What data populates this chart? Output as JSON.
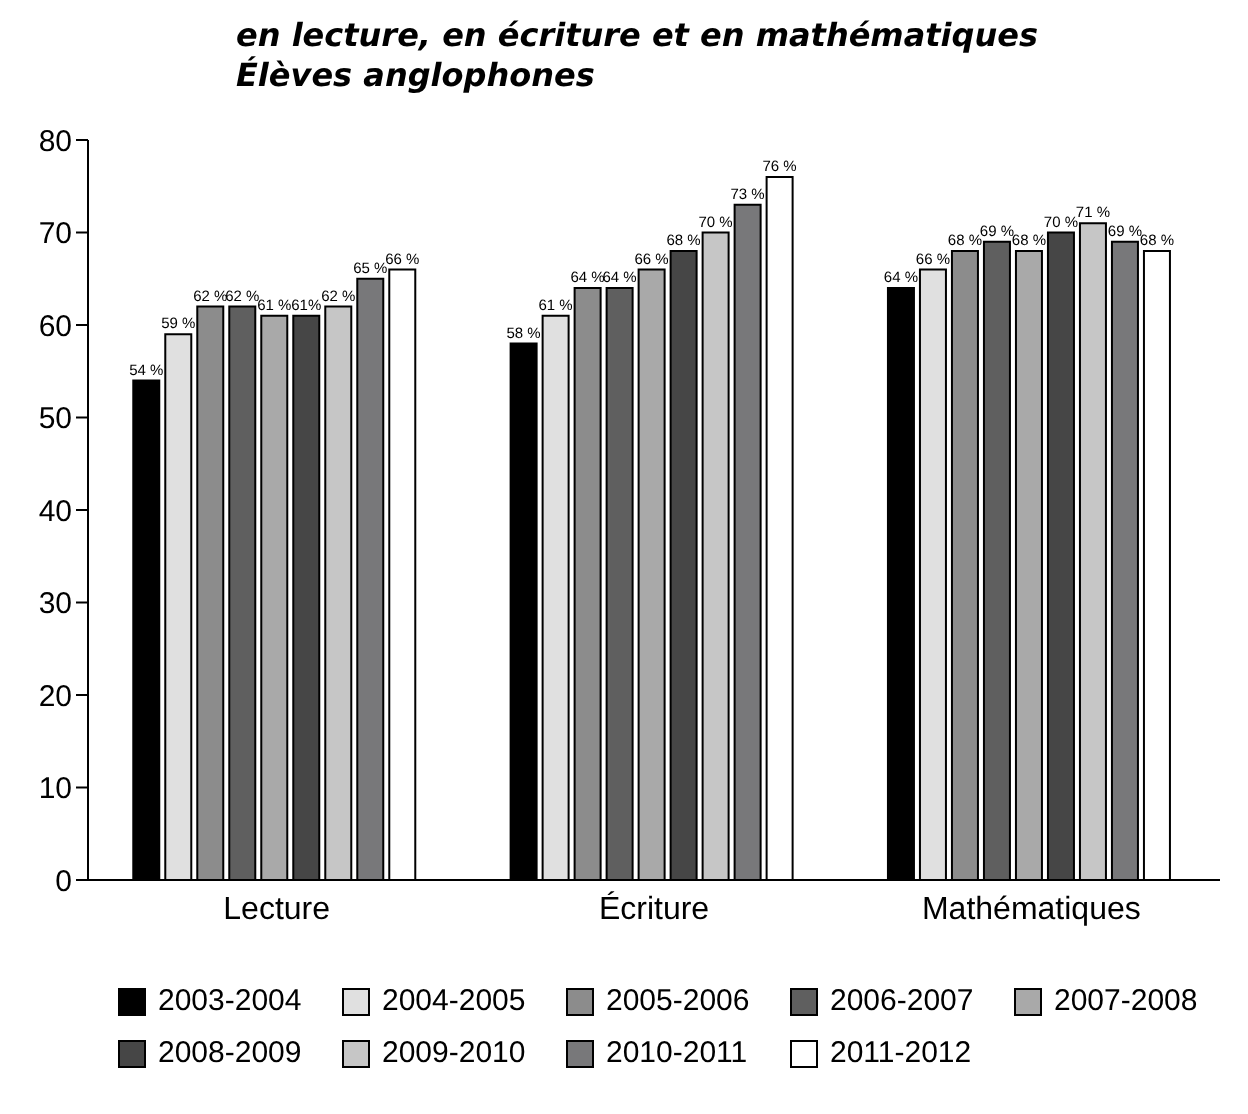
{
  "chart_data": {
    "type": "bar",
    "title": "en lecture, en écriture et en mathématiques",
    "subtitle": "Élèves anglophones",
    "categories": [
      "Lecture",
      "Écriture",
      "Mathématiques"
    ],
    "series": [
      {
        "name": "2003-2004",
        "color": "#000000",
        "values": [
          54,
          58,
          64
        ],
        "value_labels": [
          "54 %",
          "58 %",
          "64 %"
        ]
      },
      {
        "name": "2004-2005",
        "color": "#e0e0e0",
        "values": [
          59,
          61,
          66
        ],
        "value_labels": [
          "59 %",
          "61 %",
          "66 %"
        ]
      },
      {
        "name": "2005-2006",
        "color": "#8c8c8c",
        "values": [
          62,
          64,
          68
        ],
        "value_labels": [
          "62 %",
          "64 %",
          "68 %"
        ]
      },
      {
        "name": "2006-2007",
        "color": "#5f5f5f",
        "values": [
          62,
          64,
          69
        ],
        "value_labels": [
          "62 %",
          "64 %",
          "69 %"
        ]
      },
      {
        "name": "2007-2008",
        "color": "#a9a9a9",
        "values": [
          61,
          66,
          68
        ],
        "value_labels": [
          "61 %",
          "66 %",
          "68 %"
        ]
      },
      {
        "name": "2008-2009",
        "color": "#464646",
        "values": [
          61,
          68,
          70
        ],
        "value_labels": [
          "61%",
          "68 %",
          "70 %"
        ]
      },
      {
        "name": "2009-2010",
        "color": "#c6c6c6",
        "values": [
          62,
          70,
          71
        ],
        "value_labels": [
          "62 %",
          "70 %",
          "71 %"
        ]
      },
      {
        "name": "2010-2011",
        "color": "#78787a",
        "values": [
          65,
          73,
          69
        ],
        "value_labels": [
          "65 %",
          "73 %",
          "69 %"
        ]
      },
      {
        "name": "2011-2012",
        "color": "#ffffff",
        "values": [
          66,
          76,
          68
        ],
        "value_labels": [
          "66 %",
          "76 %",
          "68 %"
        ]
      }
    ],
    "ylim": [
      0,
      80
    ],
    "yticks": [
      0,
      10,
      20,
      30,
      40,
      50,
      60,
      70,
      80
    ],
    "grid": false,
    "legend": "bottom"
  }
}
